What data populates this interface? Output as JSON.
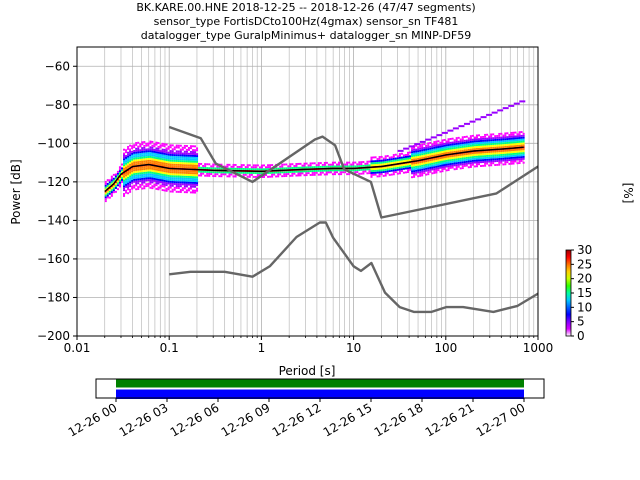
{
  "title_lines": [
    "BK.KARE.00.HNE   2018-12-25 -- 2018-12-26  (47/47 segments)",
    "sensor_type FortisDCto100Hz(4gmax) sensor_sn TF481",
    "datalogger_type GuralpMinimus+ datalogger_sn MINP-DF59"
  ],
  "chart_data": [
    {
      "type": "heatmap",
      "xlabel": "Period [s]",
      "ylabel": "Power [dB]",
      "xscale": "log",
      "xlim": [
        0.01,
        1000
      ],
      "ylim": [
        -200,
        -50
      ],
      "grid": true,
      "x_ticks": [
        {
          "value": 0.01,
          "label": "0.01"
        },
        {
          "value": 0.1,
          "label": "0.1"
        },
        {
          "value": 1,
          "label": "1"
        },
        {
          "value": 10,
          "label": "10"
        },
        {
          "value": 100,
          "label": "100"
        },
        {
          "value": 1000,
          "label": "1000"
        }
      ],
      "y_ticks": [
        {
          "value": -60,
          "label": "−60"
        },
        {
          "value": -80,
          "label": "−80"
        },
        {
          "value": -100,
          "label": "−100"
        },
        {
          "value": -120,
          "label": "−120"
        },
        {
          "value": -140,
          "label": "−140"
        },
        {
          "value": -160,
          "label": "−160"
        },
        {
          "value": -180,
          "label": "−180"
        },
        {
          "value": -200,
          "label": "−200"
        }
      ],
      "noise_models": {
        "color": "#666666",
        "high": [
          [
            0.1,
            -91.5
          ],
          [
            0.22,
            -97.4
          ],
          [
            0.32,
            -110.5
          ],
          [
            0.8,
            -120
          ],
          [
            3.8,
            -98
          ],
          [
            4.6,
            -96.5
          ],
          [
            6.3,
            -101
          ],
          [
            7.9,
            -113.5
          ],
          [
            15.4,
            -120
          ],
          [
            20,
            -138.5
          ],
          [
            354.8,
            -126
          ],
          [
            1000,
            -112
          ]
        ],
        "low": [
          [
            0.1,
            -168
          ],
          [
            0.17,
            -166.7
          ],
          [
            0.4,
            -166.7
          ],
          [
            0.8,
            -169.2
          ],
          [
            1.24,
            -163.7
          ],
          [
            2.4,
            -148.6
          ],
          [
            4.3,
            -141.1
          ],
          [
            5,
            -141.1
          ],
          [
            6,
            -149
          ],
          [
            10,
            -163.8
          ],
          [
            12,
            -166.2
          ],
          [
            15.6,
            -162.1
          ],
          [
            21.9,
            -177.5
          ],
          [
            31.6,
            -185
          ],
          [
            45,
            -187.5
          ],
          [
            70,
            -187.5
          ],
          [
            101,
            -185
          ],
          [
            154,
            -185
          ],
          [
            328,
            -187.5
          ],
          [
            600,
            -184.4
          ],
          [
            1000,
            -178
          ]
        ]
      },
      "psd_mode": [
        [
          0.02,
          -125
        ],
        [
          0.025,
          -121
        ],
        [
          0.03,
          -116
        ],
        [
          0.04,
          -112
        ],
        [
          0.06,
          -111
        ],
        [
          0.1,
          -113
        ],
        [
          0.3,
          -114
        ],
        [
          1,
          -114.5
        ],
        [
          3,
          -113.5
        ],
        [
          6,
          -113
        ],
        [
          10,
          -113
        ],
        [
          20,
          -112
        ],
        [
          50,
          -109
        ],
        [
          100,
          -106
        ],
        [
          200,
          -104
        ],
        [
          400,
          -103
        ],
        [
          700,
          -102
        ]
      ],
      "colorbar": {
        "label": "[%]",
        "range": [
          0,
          30
        ],
        "ticks": [
          0,
          5,
          10,
          15,
          20,
          25,
          30
        ],
        "colors": [
          "#ffffff",
          "#d900ff",
          "#8000ff",
          "#0000ff",
          "#0060ff",
          "#00c8ff",
          "#00ffa0",
          "#30ff00",
          "#c8ff00",
          "#ffd000",
          "#ff7000",
          "#ff0000",
          "#a00000"
        ]
      }
    },
    {
      "type": "timeline",
      "x_tick_labels": [
        "12-26 00",
        "12-26 03",
        "12-26 06",
        "12-26 09",
        "12-26 12",
        "12-26 15",
        "12-26 18",
        "12-26 21",
        "12-27 00"
      ],
      "bars": [
        {
          "color": "#008000",
          "coverage": [
            0,
            1
          ]
        },
        {
          "color": "#0000ff",
          "coverage": [
            0,
            1
          ]
        }
      ]
    }
  ]
}
